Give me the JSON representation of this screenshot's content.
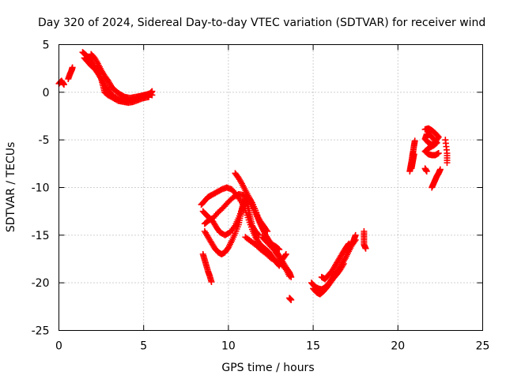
{
  "chart_data": {
    "type": "scatter",
    "title": "Day 320 of 2024, Sidereal Day-to-day VTEC variation (SDTVAR) for receiver wind",
    "xlabel": "GPS time / hours",
    "ylabel": "SDTVAR / TECUs",
    "xlim": [
      0,
      25
    ],
    "ylim": [
      -25,
      5
    ],
    "xticks": [
      0,
      5,
      10,
      15,
      20,
      25
    ],
    "yticks": [
      5,
      0,
      -5,
      -10,
      -15,
      -20,
      -25
    ],
    "grid": true,
    "marker": "+",
    "marker_color": "#ff0000",
    "series": [
      {
        "name": "SDTVAR",
        "segments": [
          [
            [
              0.0,
              0.9
            ],
            [
              0.15,
              1.2
            ],
            [
              0.3,
              0.8
            ]
          ],
          [
            [
              0.55,
              1.4
            ],
            [
              0.65,
              1.9
            ],
            [
              0.75,
              2.3
            ],
            [
              0.8,
              2.6
            ]
          ],
          [
            [
              1.4,
              4.2
            ],
            [
              1.6,
              3.9
            ],
            [
              1.8,
              3.5
            ],
            [
              2.0,
              3.0
            ],
            [
              2.2,
              2.4
            ],
            [
              2.4,
              1.7
            ],
            [
              2.6,
              1.1
            ],
            [
              2.8,
              0.5
            ],
            [
              3.0,
              0.0
            ],
            [
              3.2,
              -0.4
            ],
            [
              3.5,
              -0.7
            ],
            [
              3.8,
              -0.9
            ],
            [
              4.1,
              -0.9
            ],
            [
              4.4,
              -0.8
            ],
            [
              4.7,
              -0.5
            ],
            [
              5.0,
              -0.3
            ],
            [
              5.3,
              -0.2
            ],
            [
              5.5,
              -0.3
            ]
          ],
          [
            [
              1.5,
              3.6
            ],
            [
              1.7,
              3.2
            ],
            [
              1.9,
              2.8
            ],
            [
              2.1,
              2.5
            ],
            [
              2.3,
              2.0
            ],
            [
              2.5,
              1.4
            ],
            [
              2.6,
              0.7
            ],
            [
              2.7,
              0.0
            ],
            [
              2.9,
              -0.3
            ],
            [
              3.2,
              -0.6
            ],
            [
              3.5,
              -0.9
            ],
            [
              3.8,
              -1.0
            ],
            [
              4.1,
              -1.1
            ],
            [
              4.4,
              -1.0
            ],
            [
              4.7,
              -0.8
            ],
            [
              5.0,
              -0.6
            ],
            [
              5.3,
              -0.5
            ]
          ],
          [
            [
              1.9,
              4.0
            ],
            [
              2.1,
              3.6
            ],
            [
              2.3,
              3.0
            ],
            [
              2.5,
              2.3
            ],
            [
              2.7,
              1.7
            ],
            [
              2.9,
              1.2
            ],
            [
              3.1,
              0.6
            ],
            [
              3.3,
              0.2
            ],
            [
              3.6,
              -0.2
            ],
            [
              3.9,
              -0.5
            ],
            [
              4.2,
              -0.6
            ],
            [
              4.5,
              -0.5
            ],
            [
              4.8,
              -0.4
            ],
            [
              5.1,
              -0.3
            ],
            [
              5.4,
              -0.1
            ],
            [
              5.5,
              0.1
            ]
          ],
          [
            [
              8.5,
              -17.0
            ],
            [
              8.6,
              -17.6
            ],
            [
              8.7,
              -18.2
            ],
            [
              8.8,
              -18.8
            ],
            [
              8.9,
              -19.3
            ],
            [
              9.0,
              -19.9
            ]
          ],
          [
            [
              8.4,
              -11.8
            ],
            [
              8.6,
              -11.4
            ],
            [
              8.8,
              -11.0
            ],
            [
              9.0,
              -10.8
            ],
            [
              9.3,
              -10.5
            ],
            [
              9.6,
              -10.2
            ],
            [
              9.9,
              -10.0
            ],
            [
              10.2,
              -10.2
            ],
            [
              10.5,
              -10.8
            ],
            [
              10.8,
              -11.6
            ],
            [
              11.0,
              -12.4
            ],
            [
              11.2,
              -13.4
            ],
            [
              11.4,
              -14.4
            ],
            [
              11.6,
              -15.2
            ],
            [
              11.8,
              -15.8
            ],
            [
              12.0,
              -16.2
            ],
            [
              12.2,
              -16.5
            ],
            [
              12.4,
              -16.8
            ],
            [
              12.6,
              -17.3
            ],
            [
              12.8,
              -17.8
            ],
            [
              13.0,
              -18.2
            ],
            [
              13.2,
              -17.5
            ],
            [
              13.4,
              -17.0
            ]
          ],
          [
            [
              8.6,
              -14.6
            ],
            [
              8.8,
              -15.2
            ],
            [
              9.0,
              -15.8
            ],
            [
              9.2,
              -16.4
            ],
            [
              9.4,
              -16.8
            ],
            [
              9.6,
              -17.0
            ],
            [
              9.8,
              -16.8
            ],
            [
              10.0,
              -16.3
            ],
            [
              10.2,
              -15.6
            ],
            [
              10.4,
              -14.8
            ],
            [
              10.6,
              -13.9
            ],
            [
              10.7,
              -13.0
            ],
            [
              10.8,
              -12.2
            ],
            [
              10.9,
              -11.5
            ],
            [
              11.0,
              -11.2
            ],
            [
              11.1,
              -11.6
            ],
            [
              11.2,
              -12.4
            ],
            [
              11.3,
              -13.2
            ],
            [
              11.4,
              -14.0
            ],
            [
              11.6,
              -14.6
            ],
            [
              11.8,
              -15.0
            ]
          ],
          [
            [
              8.5,
              -12.5
            ],
            [
              8.7,
              -12.9
            ],
            [
              8.9,
              -13.2
            ],
            [
              9.1,
              -13.6
            ],
            [
              9.3,
              -14.2
            ],
            [
              9.5,
              -14.7
            ],
            [
              9.8,
              -15.0
            ],
            [
              10.1,
              -14.7
            ],
            [
              10.4,
              -14.0
            ],
            [
              10.6,
              -13.2
            ],
            [
              10.8,
              -12.3
            ],
            [
              11.0,
              -11.5
            ],
            [
              11.2,
              -11.0
            ],
            [
              11.4,
              -11.6
            ],
            [
              11.6,
              -12.4
            ],
            [
              11.8,
              -13.4
            ],
            [
              12.0,
              -14.2
            ],
            [
              12.2,
              -15.0
            ],
            [
              12.4,
              -15.6
            ],
            [
              12.6,
              -16.0
            ],
            [
              12.8,
              -16.2
            ],
            [
              13.0,
              -16.5
            ]
          ],
          [
            [
              10.4,
              -8.5
            ],
            [
              10.6,
              -9.0
            ],
            [
              10.8,
              -9.6
            ],
            [
              11.0,
              -10.3
            ],
            [
              11.2,
              -11.0
            ],
            [
              11.4,
              -11.8
            ],
            [
              11.6,
              -12.6
            ],
            [
              11.8,
              -13.5
            ],
            [
              12.0,
              -14.3
            ],
            [
              12.2,
              -15.0
            ],
            [
              12.4,
              -15.7
            ],
            [
              12.6,
              -16.2
            ],
            [
              12.8,
              -16.8
            ],
            [
              13.0,
              -17.3
            ],
            [
              13.2,
              -17.8
            ],
            [
              13.4,
              -18.4
            ],
            [
              13.6,
              -18.9
            ],
            [
              13.7,
              -19.4
            ]
          ],
          [
            [
              8.6,
              -13.8
            ],
            [
              8.8,
              -13.5
            ],
            [
              9.1,
              -13.2
            ],
            [
              9.4,
              -12.6
            ],
            [
              9.7,
              -12.1
            ],
            [
              10.0,
              -11.5
            ],
            [
              10.3,
              -11.0
            ],
            [
              10.6,
              -10.7
            ],
            [
              10.9,
              -10.8
            ],
            [
              11.2,
              -11.4
            ],
            [
              11.5,
              -12.2
            ],
            [
              11.7,
              -13.0
            ],
            [
              11.9,
              -13.6
            ],
            [
              12.1,
              -14.1
            ],
            [
              12.3,
              -14.6
            ]
          ],
          [
            [
              11.0,
              -15.2
            ],
            [
              11.3,
              -15.6
            ],
            [
              11.6,
              -16.0
            ],
            [
              11.9,
              -16.5
            ],
            [
              12.2,
              -16.9
            ],
            [
              12.5,
              -17.4
            ],
            [
              12.8,
              -17.7
            ],
            [
              13.1,
              -18.0
            ],
            [
              13.4,
              -18.6
            ],
            [
              13.6,
              -19.3
            ]
          ],
          [
            [
              12.0,
              -15.2
            ],
            [
              12.2,
              -15.6
            ],
            [
              12.5,
              -16.2
            ],
            [
              12.8,
              -16.6
            ],
            [
              13.0,
              -17.2
            ]
          ],
          [
            [
              13.6,
              -21.6
            ],
            [
              13.7,
              -21.8
            ]
          ],
          [
            [
              14.9,
              -20.0
            ],
            [
              15.1,
              -20.4
            ],
            [
              15.3,
              -20.6
            ],
            [
              15.5,
              -20.7
            ],
            [
              15.7,
              -20.5
            ],
            [
              15.9,
              -20.1
            ],
            [
              16.1,
              -19.6
            ],
            [
              16.3,
              -19.1
            ],
            [
              16.5,
              -18.6
            ],
            [
              16.7,
              -18.0
            ],
            [
              16.9,
              -17.4
            ],
            [
              17.1,
              -16.7
            ],
            [
              17.3,
              -16.0
            ],
            [
              17.5,
              -15.5
            ]
          ],
          [
            [
              15.0,
              -20.6
            ],
            [
              15.2,
              -21.0
            ],
            [
              15.4,
              -21.2
            ],
            [
              15.6,
              -20.9
            ],
            [
              15.8,
              -20.5
            ],
            [
              16.0,
              -20.0
            ],
            [
              16.2,
              -19.5
            ],
            [
              16.4,
              -19.1
            ],
            [
              16.6,
              -18.6
            ],
            [
              16.8,
              -18.0
            ]
          ],
          [
            [
              15.5,
              -19.4
            ],
            [
              15.7,
              -19.6
            ],
            [
              15.9,
              -19.2
            ],
            [
              16.1,
              -18.8
            ],
            [
              16.3,
              -18.2
            ],
            [
              16.5,
              -17.6
            ],
            [
              16.7,
              -17.0
            ],
            [
              16.9,
              -16.4
            ],
            [
              17.1,
              -15.9
            ]
          ],
          [
            [
              16.8,
              -16.8
            ],
            [
              17.0,
              -16.4
            ],
            [
              17.2,
              -16.0
            ],
            [
              17.4,
              -15.5
            ],
            [
              17.5,
              -15.0
            ]
          ],
          [
            [
              18.0,
              -14.6
            ],
            [
              18.0,
              -15.3
            ],
            [
              18.0,
              -16.0
            ],
            [
              18.1,
              -16.4
            ]
          ],
          [
            [
              20.7,
              -8.3
            ],
            [
              20.75,
              -7.8
            ],
            [
              20.8,
              -7.3
            ],
            [
              20.85,
              -6.7
            ],
            [
              20.9,
              -6.2
            ],
            [
              20.95,
              -5.6
            ],
            [
              21.0,
              -5.1
            ]
          ],
          [
            [
              20.8,
              -8.0
            ],
            [
              20.85,
              -7.5
            ],
            [
              20.9,
              -7.0
            ],
            [
              20.95,
              -6.5
            ]
          ],
          [
            [
              21.6,
              -3.9
            ],
            [
              21.8,
              -3.8
            ],
            [
              22.0,
              -4.0
            ],
            [
              22.2,
              -4.3
            ],
            [
              22.4,
              -4.7
            ],
            [
              22.2,
              -5.2
            ],
            [
              22.0,
              -5.5
            ],
            [
              21.8,
              -5.3
            ],
            [
              21.6,
              -4.9
            ],
            [
              21.7,
              -4.4
            ],
            [
              21.9,
              -4.5
            ],
            [
              22.1,
              -4.9
            ],
            [
              22.3,
              -5.3
            ],
            [
              22.1,
              -5.6
            ],
            [
              21.8,
              -5.9
            ],
            [
              21.6,
              -6.2
            ],
            [
              21.8,
              -6.5
            ],
            [
              22.0,
              -6.6
            ],
            [
              22.2,
              -6.6
            ],
            [
              22.4,
              -6.4
            ]
          ],
          [
            [
              21.6,
              -8.0
            ],
            [
              21.7,
              -8.3
            ]
          ],
          [
            [
              22.0,
              -10.0
            ],
            [
              22.1,
              -9.6
            ],
            [
              22.2,
              -9.2
            ],
            [
              22.3,
              -8.8
            ],
            [
              22.4,
              -8.5
            ],
            [
              22.5,
              -8.1
            ]
          ],
          [
            [
              22.8,
              -5.0
            ],
            [
              22.9,
              -6.4
            ],
            [
              22.9,
              -7.4
            ]
          ]
        ]
      }
    ]
  }
}
